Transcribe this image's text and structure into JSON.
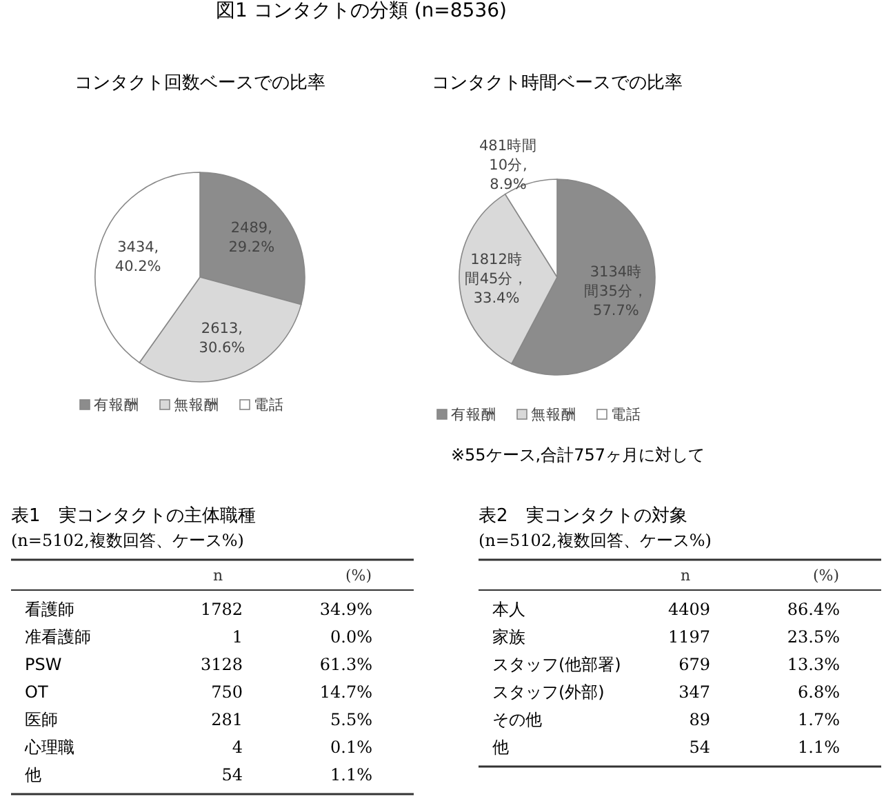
{
  "chart_data": [
    {
      "type": "pie",
      "title": "図1 コンタクトの分類 (n=8536)",
      "subtitle": "コンタクト回数ベースでの比率",
      "categories": [
        "有報酬",
        "無報酬",
        "電話"
      ],
      "values": [
        29.2,
        30.6,
        40.2
      ],
      "colors": [
        "#8c8c8c",
        "#d9d9d9",
        "#ffffff"
      ],
      "value_labels": [
        "2489,29.2%",
        "2613,30.6%",
        "3434,40.2%"
      ],
      "legend": "bottom"
    },
    {
      "type": "pie",
      "subtitle": "コンタクト時間ベースでの比率",
      "categories": [
        "有報酬",
        "無報酬",
        "電話"
      ],
      "values": [
        57.7,
        33.4,
        8.9
      ],
      "colors": [
        "#8c8c8c",
        "#d9d9d9",
        "#ffffff"
      ],
      "value_labels": [
        "3134時間35分，57.7%",
        "1812時間45分，33.4%",
        "481時間10分,8.9%"
      ],
      "legend": "bottom",
      "annotations": [
        "※55ケース,合計757ヶ月に対して"
      ]
    },
    {
      "type": "other",
      "data_labels": true,
      "title": "表1　実コンタクトの主体職種",
      "subtitle": "(n=5102,複数回答、ケース%)",
      "categories": [
        "看護師",
        "准看護師",
        "PSW",
        "OT",
        "医師",
        "心理職",
        "他"
      ],
      "series": [
        {
          "name": "n",
          "values": [
            1782,
            1,
            3128,
            750,
            281,
            4,
            54
          ]
        },
        {
          "name": "(%)",
          "values": [
            34.9,
            0.0,
            61.3,
            14.7,
            5.5,
            0.1,
            1.1
          ],
          "value_labels": [
            "34.9%",
            "0.0%",
            "61.3%",
            "14.7%",
            "5.5%",
            "0.1%",
            "1.1%"
          ]
        }
      ]
    },
    {
      "type": "other",
      "data_labels": true,
      "title": "表2　実コンタクトの対象",
      "subtitle": "(n=5102,複数回答、ケース%)",
      "categories": [
        "本人",
        "家族",
        "スタッフ(他部署)",
        "スタッフ(外部)",
        "その他",
        "他"
      ],
      "series": [
        {
          "name": "n",
          "values": [
            4409,
            1197,
            679,
            347,
            89,
            54
          ]
        },
        {
          "name": "(%)",
          "values": [
            86.4,
            23.5,
            13.3,
            6.8,
            1.7,
            1.1
          ],
          "value_labels": [
            "86.4%",
            "23.5%",
            "13.3%",
            "6.8%",
            "1.7%",
            "1.1%"
          ]
        }
      ]
    }
  ]
}
